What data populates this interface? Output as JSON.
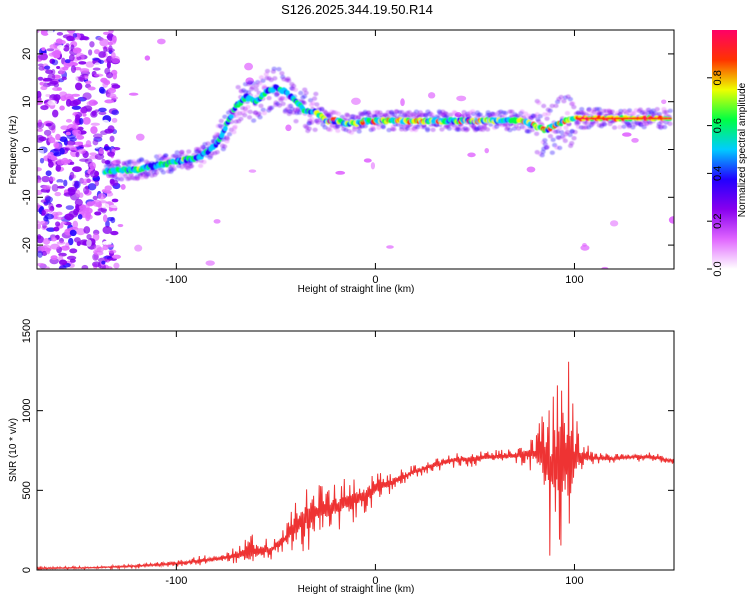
{
  "title": "S126.2025.344.19.50.R14",
  "chart_data": [
    {
      "type": "heatmap",
      "xlabel": "Height of straight line (km)",
      "ylabel": "Frequency (Hz)",
      "xlim": [
        -170,
        150
      ],
      "ylim": [
        -25,
        25
      ],
      "xticks": [
        -100,
        0,
        100
      ],
      "yticks": [
        -20,
        -10,
        0,
        10,
        20
      ],
      "colorbar": {
        "label": "Normalized spectral amplitude",
        "range": [
          0.0,
          1.0
        ],
        "ticks": [
          "0.0",
          "0.2",
          "0.4",
          "0.6",
          "0.8"
        ],
        "tick_values": [
          0.0,
          0.2,
          0.4,
          0.6,
          0.8
        ],
        "colors": [
          "#ffffff",
          "#e066ff",
          "#8800ee",
          "#2200ff",
          "#00ccff",
          "#00ff44",
          "#eeff00",
          "#ff3300",
          "#ff0066"
        ]
      },
      "ridge": {
        "x": [
          -136,
          -120,
          -100,
          -88,
          -80,
          -75,
          -70,
          -65,
          -60,
          -55,
          -50,
          -45,
          -40,
          -35,
          -30,
          -25,
          -20,
          -15,
          -10,
          -5,
          0,
          10,
          20,
          40,
          60,
          75,
          80,
          85,
          90,
          95,
          100,
          110,
          130,
          148
        ],
        "y": [
          -4.5,
          -4.2,
          -2.5,
          -1.5,
          1,
          5,
          9,
          11,
          10,
          12,
          13,
          12,
          10,
          8,
          8,
          6,
          6,
          5.5,
          5.5,
          6,
          6,
          6,
          6,
          6,
          6,
          6,
          5,
          4,
          5,
          6,
          6.5,
          6.5,
          6.5,
          6.5
        ]
      }
    },
    {
      "type": "line",
      "xlabel": "Height of straight line (km)",
      "ylabel": "SNR (10 * v/v)",
      "xlim": [
        -170,
        150
      ],
      "ylim": [
        0,
        1500
      ],
      "xticks": [
        -100,
        0,
        100
      ],
      "yticks": [
        0,
        500,
        1000,
        1500
      ],
      "series": [
        {
          "color": "#ee3333",
          "x": [
            -170,
            -140,
            -120,
            -100,
            -90,
            -80,
            -70,
            -60,
            -52,
            -45,
            -40,
            -35,
            -30,
            -25,
            -20,
            -15,
            -10,
            -5,
            0,
            10,
            20,
            30,
            40,
            50,
            60,
            70,
            80,
            85,
            88,
            92,
            96,
            98,
            100,
            104,
            110,
            120,
            130,
            140,
            150
          ],
          "base": [
            10,
            15,
            25,
            40,
            55,
            70,
            90,
            120,
            130,
            200,
            280,
            330,
            360,
            380,
            390,
            420,
            440,
            470,
            510,
            560,
            620,
            660,
            690,
            700,
            710,
            720,
            730,
            700,
            650,
            700,
            680,
            650,
            700,
            720,
            700,
            700,
            710,
            710,
            680
          ],
          "amp": [
            8,
            10,
            15,
            20,
            30,
            40,
            60,
            120,
            60,
            80,
            200,
            250,
            200,
            150,
            150,
            160,
            150,
            120,
            100,
            60,
            50,
            50,
            50,
            50,
            50,
            50,
            120,
            400,
            600,
            650,
            600,
            700,
            300,
            100,
            40,
            30,
            30,
            30,
            20
          ]
        }
      ]
    }
  ]
}
